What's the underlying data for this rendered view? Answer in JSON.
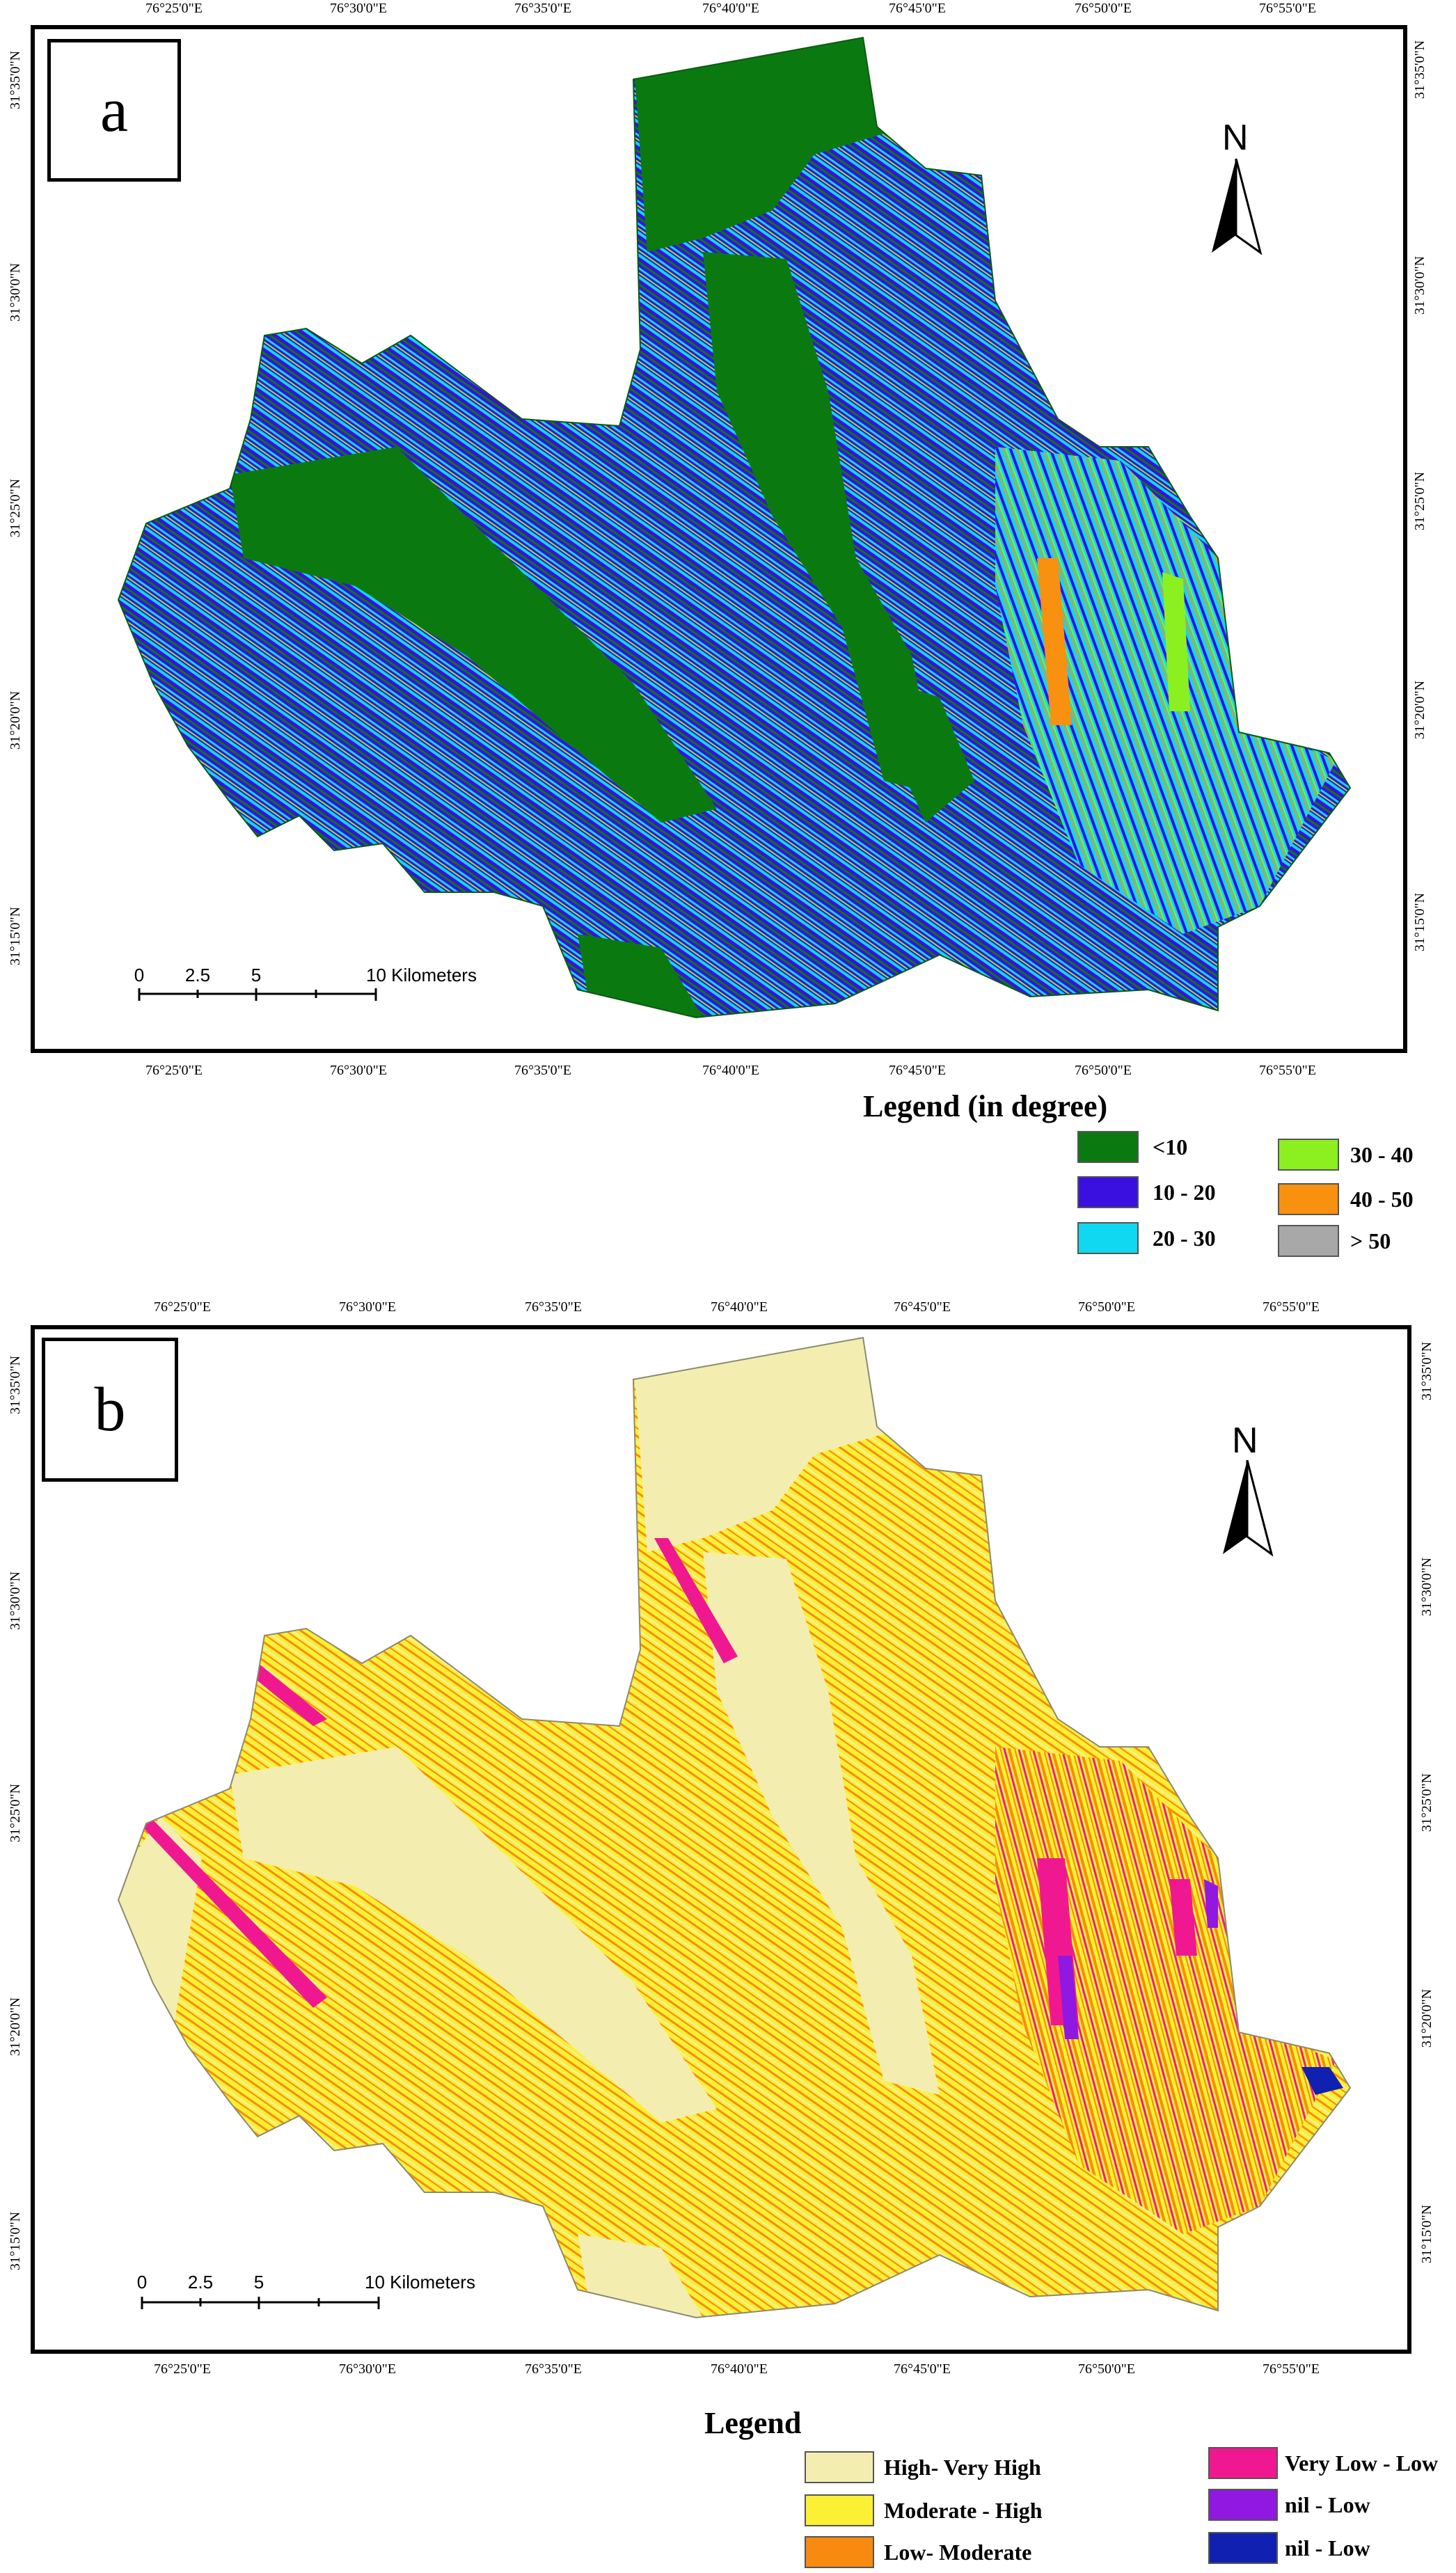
{
  "colors": {
    "lt10": "#0a7a10",
    "s10_20": "#3a10e0",
    "s20_30": "#10d8f0",
    "s30_40": "#8cf020",
    "s40_50": "#f89010",
    "gt50": "#a8a8a8",
    "high_very_high": "#f3eeb0",
    "moderate_high": "#fbf034",
    "low_moderate": "#f88a10",
    "very_low_low": "#f01890",
    "nil_low_purple": "#9018e0",
    "nil_low_blue": "#1020b0"
  },
  "panel_a": {
    "letter": "a",
    "north": "N",
    "lon_ticks": [
      "76°25'0\"E",
      "76°30'0\"E",
      "76°35'0\"E",
      "76°40'0\"E",
      "76°45'0\"E",
      "76°50'0\"E",
      "76°55'0\"E"
    ],
    "lat_ticks": [
      "31°35'0\"N",
      "31°30'0\"N",
      "31°25'0\"N",
      "31°20'0\"N",
      "31°15'0\"N"
    ],
    "scale_labels": [
      "0",
      "2.5",
      "5",
      "10 Kilometers"
    ],
    "legend": {
      "title": "Legend (in degree)",
      "items": [
        {
          "label": "<10",
          "color_key": "lt10"
        },
        {
          "label": "10 - 20",
          "color_key": "s10_20"
        },
        {
          "label": "20 - 30",
          "color_key": "s20_30"
        },
        {
          "label": "30 - 40",
          "color_key": "s30_40"
        },
        {
          "label": "40 - 50",
          "color_key": "s40_50"
        },
        {
          "label": "> 50",
          "color_key": "gt50"
        }
      ]
    }
  },
  "panel_b": {
    "letter": "b",
    "north": "N",
    "lon_ticks": [
      "76°25'0\"E",
      "76°30'0\"E",
      "76°35'0\"E",
      "76°40'0\"E",
      "76°45'0\"E",
      "76°50'0\"E",
      "76°55'0\"E"
    ],
    "lat_ticks": [
      "31°35'0\"N",
      "31°30'0\"N",
      "31°25'0\"N",
      "31°20'0\"N",
      "31°15'0\"N"
    ],
    "scale_labels": [
      "0",
      "2.5",
      "5",
      "10 Kilometers"
    ],
    "legend": {
      "title": "Legend",
      "items": [
        {
          "label": "High- Very High",
          "color_key": "high_very_high"
        },
        {
          "label": "Moderate - High",
          "color_key": "moderate_high"
        },
        {
          "label": "Low- Moderate",
          "color_key": "low_moderate"
        },
        {
          "label": "Very Low - Low",
          "color_key": "very_low_low"
        },
        {
          "label": "nil - Low",
          "color_key": "nil_low_purple"
        },
        {
          "label": "nil - Low",
          "color_key": "nil_low_blue"
        }
      ]
    }
  }
}
